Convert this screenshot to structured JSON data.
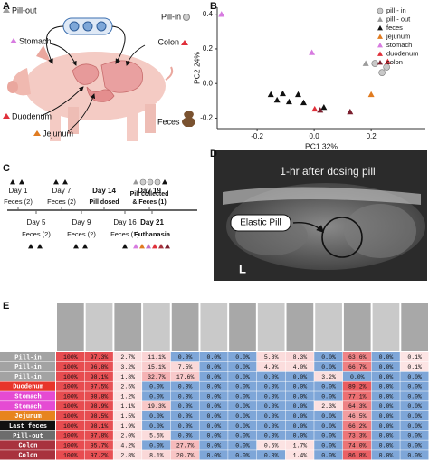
{
  "panels": {
    "a": "A",
    "b": "B",
    "c": "C",
    "d": "D",
    "e": "E"
  },
  "illustration": {
    "pill_out": "Pill-out",
    "pill_in": "Pill-in",
    "stomach": "Stomach",
    "colon": "Colon",
    "duodenum": "Duodenum",
    "jejunum": "Jejunum",
    "feces": "Feces"
  },
  "chart_data": {
    "type": "scatter",
    "xlabel": "PC1 32%",
    "ylabel": "PC2  24%",
    "xlim": [
      -0.34,
      0.39
    ],
    "ylim": [
      -0.26,
      0.44
    ],
    "xticks": [
      -0.2,
      {
        "value": 0,
        "label": "0.0"
      },
      0.2
    ],
    "yticks": [
      -0.2,
      {
        "value": 0,
        "label": "0.0"
      },
      0.2,
      0.4
    ],
    "grid": false,
    "legend": "top-right",
    "series": [
      {
        "name": "pill - in",
        "color": "#c8c8c8",
        "marker": "circle",
        "x": [
          0.213,
          0.238,
          0.254
        ],
        "values": [
          0.116,
          0.063,
          0.095
        ]
      },
      {
        "name": "pill - out",
        "color": "#9c9c9c",
        "marker": "triangle",
        "x": [
          0.181
        ],
        "values": [
          0.116
        ]
      },
      {
        "name": "feces",
        "color": "#111111",
        "marker": "triangle",
        "x": [
          -0.152,
          -0.13,
          -0.11,
          -0.088,
          -0.056,
          -0.037,
          0.034
        ],
        "values": [
          -0.063,
          -0.095,
          -0.058,
          -0.105,
          -0.063,
          -0.11,
          -0.137
        ]
      },
      {
        "name": "jejunum",
        "color": "#e07b20",
        "marker": "triangle",
        "x": [
          0.2
        ],
        "values": [
          -0.063
        ]
      },
      {
        "name": "stomach",
        "color": "#d77be0",
        "marker": "triangle",
        "x": [
          -0.325,
          -0.008
        ],
        "values": [
          0.4,
          0.179
        ]
      },
      {
        "name": "duodenum",
        "color": "#e0303a",
        "marker": "triangle",
        "x": [
          0.258,
          0.002
        ],
        "values": [
          0.126,
          -0.147
        ]
      },
      {
        "name": "colon",
        "color": "#7a1f2e",
        "marker": "triangle",
        "x": [
          0.021,
          0.126
        ],
        "values": [
          -0.153,
          -0.163
        ]
      }
    ]
  },
  "timeline": {
    "above": [
      {
        "day": "Day 1",
        "note": [
          "Feces (2)"
        ]
      },
      {
        "day": "Day 7",
        "note": [
          "Feces (2)"
        ]
      },
      {
        "day": "Day 14",
        "note": [
          "Pill dosed"
        ]
      },
      {
        "day": "Day 19",
        "note": [
          "Pill collected",
          "& Feces (1)"
        ]
      }
    ],
    "below": [
      {
        "day": "Day 5",
        "note": "Feces (2)"
      },
      {
        "day": "Day 9",
        "note": "Feces (2)"
      },
      {
        "day": "Day 16",
        "note": "Feces (1)"
      },
      {
        "day": "Day 21",
        "note": "Euthanasia"
      }
    ]
  },
  "xray": {
    "caption": "1-hr after dosing pill",
    "pill_label": "Elastic Pill",
    "side": "L"
  },
  "table": {
    "rows": [
      {
        "label": "Pill-in",
        "color": "#a3a3a3",
        "cells": [
          "100%",
          "97.3%",
          "2.7%",
          "11.1%",
          "0.0%",
          "0.0%",
          "0.0%",
          "5.3%",
          "8.3%",
          "0.0%",
          "63.6%",
          "0.0%",
          "0.1%"
        ]
      },
      {
        "label": "Pill-in",
        "color": "#a3a3a3",
        "cells": [
          "100%",
          "96.8%",
          "3.2%",
          "15.1%",
          "7.5%",
          "0.0%",
          "0.0%",
          "4.9%",
          "4.0%",
          "0.0%",
          "66.7%",
          "0.0%",
          "0.1%"
        ]
      },
      {
        "label": "Pill-in",
        "color": "#a3a3a3",
        "cells": [
          "100%",
          "98.1%",
          "1.8%",
          "32.7%",
          "17.6%",
          "0.0%",
          "0.0%",
          "0.0%",
          "0.0%",
          "3.2%",
          "0.0%",
          "0.0%",
          "0.0%"
        ]
      },
      {
        "label": "Duodenum",
        "color": "#e8352b",
        "cells": [
          "100%",
          "97.5%",
          "2.5%",
          "0.0%",
          "0.0%",
          "0.0%",
          "0.0%",
          "0.0%",
          "0.0%",
          "0.0%",
          "89.2%",
          "0.0%",
          "0.0%"
        ]
      },
      {
        "label": "Stomach",
        "color": "#e54bd3",
        "cells": [
          "100%",
          "98.8%",
          "1.2%",
          "0.0%",
          "0.0%",
          "0.0%",
          "0.0%",
          "0.0%",
          "0.0%",
          "0.0%",
          "77.1%",
          "0.0%",
          "0.0%"
        ]
      },
      {
        "label": "Stomach",
        "color": "#e54bd3",
        "cells": [
          "100%",
          "98.9%",
          "1.1%",
          "19.3%",
          "0.0%",
          "0.0%",
          "0.0%",
          "0.0%",
          "0.0%",
          "2.3%",
          "64.3%",
          "0.0%",
          "0.0%"
        ]
      },
      {
        "label": "Jejunum",
        "color": "#e7841e",
        "cells": [
          "100%",
          "98.5%",
          "1.5%",
          "0.0%",
          "0.0%",
          "0.0%",
          "0.0%",
          "0.0%",
          "0.0%",
          "0.0%",
          "46.5%",
          "0.0%",
          "0.0%"
        ]
      },
      {
        "label": "Last feces",
        "color": "#111111",
        "cells": [
          "100%",
          "98.1%",
          "1.9%",
          "0.0%",
          "0.0%",
          "0.0%",
          "0.0%",
          "0.0%",
          "0.0%",
          "0.0%",
          "66.2%",
          "0.0%",
          "0.0%"
        ]
      },
      {
        "label": "Pill-out",
        "color": "#6d6d6d",
        "cells": [
          "100%",
          "97.8%",
          "2.0%",
          "5.5%",
          "0.0%",
          "0.0%",
          "0.0%",
          "0.0%",
          "0.0%",
          "0.0%",
          "73.3%",
          "0.0%",
          "0.0%"
        ]
      },
      {
        "label": "Colon",
        "color": "#a8323e",
        "cells": [
          "100%",
          "95.7%",
          "4.2%",
          "0.0%",
          "27.7%",
          "0.0%",
          "0.0%",
          "0.5%",
          "1.7%",
          "0.0%",
          "74.0%",
          "0.0%",
          "0.0%"
        ]
      },
      {
        "label": "Colon",
        "color": "#a8323e",
        "cells": [
          "100%",
          "97.2%",
          "2.8%",
          "8.1%",
          "20.7%",
          "0.0%",
          "0.0%",
          "0.0%",
          "1.4%",
          "0.0%",
          "86.8%",
          "0.0%",
          "0.0%"
        ]
      }
    ]
  }
}
